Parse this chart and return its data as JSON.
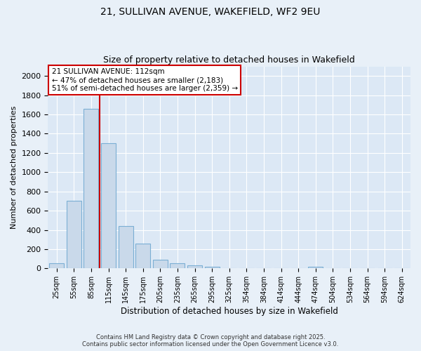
{
  "title1": "21, SULLIVAN AVENUE, WAKEFIELD, WF2 9EU",
  "title2": "Size of property relative to detached houses in Wakefield",
  "xlabel": "Distribution of detached houses by size in Wakefield",
  "ylabel": "Number of detached properties",
  "categories": [
    "25sqm",
    "55sqm",
    "85sqm",
    "115sqm",
    "145sqm",
    "175sqm",
    "205sqm",
    "235sqm",
    "265sqm",
    "295sqm",
    "325sqm",
    "354sqm",
    "384sqm",
    "414sqm",
    "444sqm",
    "474sqm",
    "504sqm",
    "534sqm",
    "564sqm",
    "594sqm",
    "624sqm"
  ],
  "values": [
    55,
    700,
    1660,
    1300,
    440,
    255,
    90,
    50,
    30,
    20,
    0,
    0,
    0,
    0,
    0,
    15,
    0,
    0,
    0,
    0,
    0
  ],
  "bar_color": "#c9d9ea",
  "bar_edge_color": "#7bafd4",
  "vline_color": "#cc0000",
  "annotation_title": "21 SULLIVAN AVENUE: 112sqm",
  "annotation_line1": "← 47% of detached houses are smaller (2,183)",
  "annotation_line2": "51% of semi-detached houses are larger (2,359) →",
  "annotation_box_color": "#cc0000",
  "ylim": [
    0,
    2100
  ],
  "yticks": [
    0,
    200,
    400,
    600,
    800,
    1000,
    1200,
    1400,
    1600,
    1800,
    2000
  ],
  "footer1": "Contains HM Land Registry data © Crown copyright and database right 2025.",
  "footer2": "Contains public sector information licensed under the Open Government Licence v3.0.",
  "background_color": "#e8f0f8",
  "plot_background": "#dce8f5"
}
